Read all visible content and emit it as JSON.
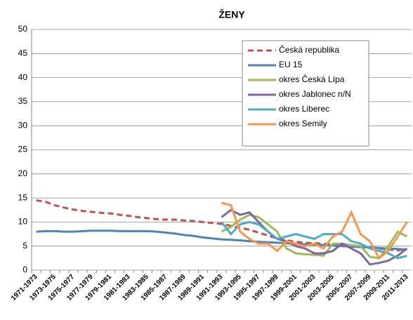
{
  "chart_data": {
    "type": "line",
    "title": "ŽENY",
    "categories": [
      "1971-1973",
      null,
      "1973-1975",
      null,
      "1975-1977",
      null,
      "1977-1979",
      null,
      "1979-1981",
      null,
      "1981-1983",
      null,
      "1983-1985",
      null,
      "1985-1987",
      null,
      "1987-1989",
      null,
      "1989-1991",
      null,
      "1991-1993",
      null,
      "1993-1995",
      null,
      "1995-1997",
      null,
      "1997-1999",
      null,
      "1999-2001",
      null,
      "2001-2003",
      null,
      "2003-2005",
      null,
      "2005-2007",
      null,
      "2007-2009",
      null,
      "2009-2011",
      null,
      "2011-2013"
    ],
    "series": [
      {
        "name": "Česká republika",
        "color": "#c0504d",
        "dashed": true,
        "values": [
          14.5,
          14.2,
          13.5,
          13.0,
          12.6,
          12.3,
          12.1,
          11.9,
          11.8,
          11.5,
          11.3,
          11.0,
          10.8,
          10.6,
          10.5,
          10.5,
          10.3,
          10.2,
          10.0,
          9.8,
          9.6,
          9.2,
          8.8,
          8.4,
          7.8,
          7.2,
          6.6,
          6.2,
          5.9,
          5.7,
          5.6,
          5.5,
          5.4,
          5.3,
          5.1,
          4.9,
          4.7,
          4.5,
          4.3,
          4.1,
          4.4
        ]
      },
      {
        "name": "EU 15",
        "color": "#4f81bd",
        "values": [
          8.0,
          8.1,
          8.1,
          8.0,
          8.0,
          8.1,
          8.2,
          8.2,
          8.2,
          8.1,
          8.1,
          8.1,
          8.1,
          8.0,
          7.8,
          7.6,
          7.3,
          7.1,
          6.8,
          6.6,
          6.4,
          6.3,
          6.2,
          6.0,
          5.9,
          5.8,
          5.7,
          5.6,
          5.5,
          5.4,
          5.3,
          5.2,
          5.1,
          5.0,
          4.9,
          4.8,
          4.7,
          4.6,
          4.5,
          4.4,
          4.3
        ]
      },
      {
        "name": "okres Česká Lípa",
        "color": "#9bbb59",
        "values": [
          null,
          null,
          null,
          null,
          null,
          null,
          null,
          null,
          null,
          null,
          null,
          null,
          null,
          null,
          null,
          null,
          null,
          null,
          null,
          null,
          8.0,
          9.0,
          10.5,
          11.5,
          11.0,
          9.5,
          8.0,
          4.5,
          3.5,
          3.3,
          3.2,
          3.0,
          5.5,
          5.5,
          5.2,
          5.0,
          2.8,
          2.5,
          5.0,
          8.0,
          7.0
        ]
      },
      {
        "name": "okres Jablonec n/N",
        "color": "#8064a2",
        "values": [
          null,
          null,
          null,
          null,
          null,
          null,
          null,
          null,
          null,
          null,
          null,
          null,
          null,
          null,
          null,
          null,
          null,
          null,
          null,
          null,
          11.0,
          12.5,
          11.5,
          12.0,
          10.0,
          8.0,
          6.5,
          6.0,
          5.0,
          4.5,
          3.5,
          3.5,
          4.0,
          5.5,
          4.5,
          3.5,
          1.2,
          1.5,
          2.0,
          3.0,
          4.5
        ]
      },
      {
        "name": "okres Liberec",
        "color": "#4bacc6",
        "values": [
          null,
          null,
          null,
          null,
          null,
          null,
          null,
          null,
          null,
          null,
          null,
          null,
          null,
          null,
          null,
          null,
          null,
          null,
          null,
          null,
          10.0,
          7.5,
          9.5,
          10.0,
          9.5,
          8.0,
          6.5,
          7.0,
          7.5,
          7.0,
          6.5,
          7.5,
          7.5,
          7.5,
          6.0,
          5.5,
          4.5,
          4.0,
          3.5,
          2.5,
          3.0
        ]
      },
      {
        "name": "okres Semily",
        "color": "#f79646",
        "values": [
          null,
          null,
          null,
          null,
          null,
          null,
          null,
          null,
          null,
          null,
          null,
          null,
          null,
          null,
          null,
          null,
          null,
          null,
          null,
          null,
          14.0,
          13.5,
          8.0,
          6.5,
          5.5,
          5.5,
          4.0,
          6.0,
          5.5,
          5.0,
          5.5,
          4.5,
          7.0,
          8.0,
          12.0,
          7.5,
          6.0,
          2.5,
          4.0,
          7.0,
          10.0
        ]
      }
    ],
    "ylim": [
      0,
      50
    ],
    "yticks": [
      0,
      5,
      10,
      15,
      20,
      25,
      30,
      35,
      40,
      45,
      50
    ],
    "grid": true
  }
}
